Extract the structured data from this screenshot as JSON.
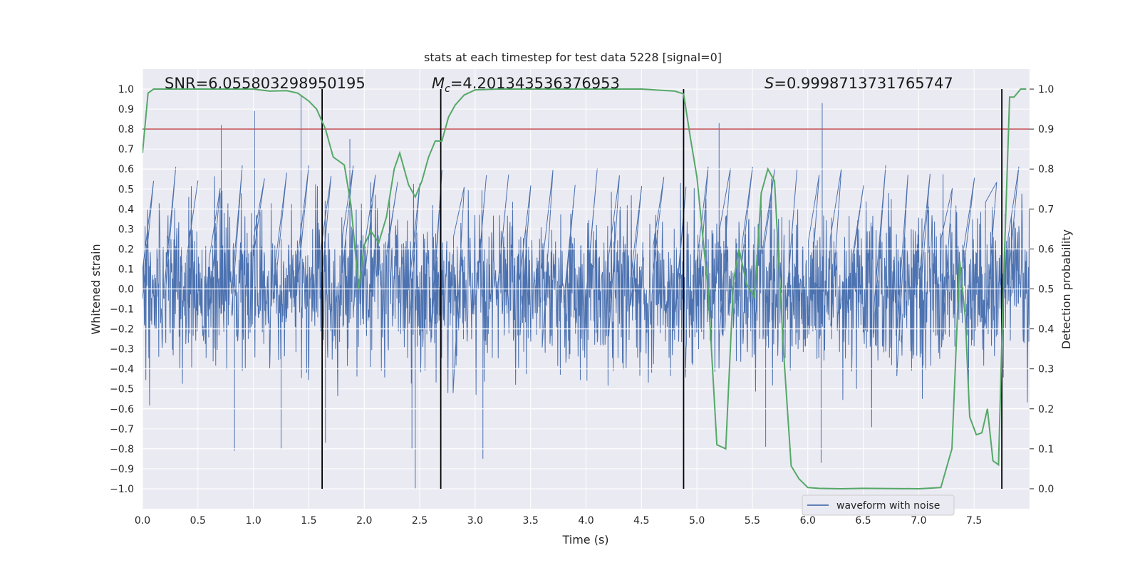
{
  "chart_data": {
    "type": "line",
    "title": "stats at each timestep for test data 5228 [signal=0]",
    "xlabel": "Time (s)",
    "ylabel_left": "Whitened strain",
    "ylabel_right": "Detection probability",
    "xlim": [
      0.0,
      8.0
    ],
    "ylim_left": [
      -1.1,
      1.1
    ],
    "ylim_right": [
      -0.05,
      1.05
    ],
    "x_ticks": [
      0.0,
      0.5,
      1.0,
      1.5,
      2.0,
      2.5,
      3.0,
      3.5,
      4.0,
      4.5,
      5.0,
      5.5,
      6.0,
      6.5,
      7.0,
      7.5
    ],
    "x_tick_labels": [
      "0.0",
      "0.5",
      "1.0",
      "1.5",
      "2.0",
      "2.5",
      "3.0",
      "3.5",
      "4.0",
      "4.5",
      "5.0",
      "5.5",
      "6.0",
      "6.5",
      "7.0",
      "7.5"
    ],
    "y_left_ticks": [
      -1.0,
      -0.9,
      -0.8,
      -0.7,
      -0.6,
      -0.5,
      -0.4,
      -0.3,
      -0.2,
      -0.1,
      0.0,
      0.1,
      0.2,
      0.3,
      0.4,
      0.5,
      0.6,
      0.7,
      0.8,
      0.9,
      1.0
    ],
    "y_left_tick_labels": [
      "−1.0",
      "−0.9",
      "−0.8",
      "−0.7",
      "−0.6",
      "−0.5",
      "−0.4",
      "−0.3",
      "−0.2",
      "−0.1",
      "0.0",
      "0.1",
      "0.2",
      "0.3",
      "0.4",
      "0.5",
      "0.6",
      "0.7",
      "0.8",
      "0.9",
      "1.0"
    ],
    "y_right_ticks": [
      0.0,
      0.1,
      0.2,
      0.3,
      0.4,
      0.5,
      0.6,
      0.7,
      0.8,
      0.9,
      1.0
    ],
    "y_right_tick_labels": [
      "0.0",
      "0.1",
      "0.2",
      "0.3",
      "0.4",
      "0.5",
      "0.6",
      "0.7",
      "0.8",
      "0.9",
      "1.0"
    ],
    "annotations": {
      "snr": "SNR=6.055803298950195",
      "mc_symbol": "M",
      "mc_sub": "c",
      "mc_value": "=4.201343536376953",
      "s_symbol": "S",
      "s_value": "=0.9998713731765747"
    },
    "threshold_probability": 0.9,
    "vertical_markers_s": [
      1.62,
      2.69,
      4.88,
      7.75
    ],
    "waveform": {
      "name": "waveform with noise",
      "duration_s": 8.0,
      "typical_range": [
        -0.45,
        0.45
      ],
      "peaks": [
        {
          "x": 0.71,
          "y": 0.82
        },
        {
          "x": 1.01,
          "y": 0.89
        },
        {
          "x": 1.43,
          "y": 0.97
        },
        {
          "x": 1.87,
          "y": 0.75
        },
        {
          "x": 5.2,
          "y": 0.83
        },
        {
          "x": 6.13,
          "y": 0.93
        },
        {
          "x": 0.83,
          "y": -0.81
        },
        {
          "x": 1.25,
          "y": -0.8
        },
        {
          "x": 2.43,
          "y": -0.8
        },
        {
          "x": 2.46,
          "y": -1.0
        },
        {
          "x": 3.07,
          "y": -0.85
        },
        {
          "x": 6.12,
          "y": -0.87
        },
        {
          "x": 1.65,
          "y": -0.77
        },
        {
          "x": 5.62,
          "y": -0.79
        }
      ]
    },
    "probability": {
      "color": "#55a868",
      "x": [
        0.0,
        0.05,
        0.1,
        0.2,
        0.3,
        0.5,
        0.8,
        1.0,
        1.15,
        1.3,
        1.4,
        1.5,
        1.57,
        1.65,
        1.72,
        1.82,
        1.88,
        1.95,
        2.0,
        2.06,
        2.13,
        2.2,
        2.27,
        2.32,
        2.4,
        2.46,
        2.52,
        2.58,
        2.64,
        2.7,
        2.76,
        2.82,
        2.9,
        3.0,
        3.2,
        3.5,
        4.0,
        4.5,
        4.8,
        4.88,
        4.94,
        5.0,
        5.1,
        5.18,
        5.26,
        5.33,
        5.38,
        5.45,
        5.52,
        5.58,
        5.64,
        5.7,
        5.78,
        5.85,
        5.92,
        6.0,
        6.1,
        6.3,
        6.5,
        7.0,
        7.2,
        7.3,
        7.37,
        7.42,
        7.46,
        7.52,
        7.57,
        7.62,
        7.67,
        7.72,
        7.76,
        7.82,
        7.86,
        7.92,
        7.97
      ],
      "y": [
        0.84,
        0.99,
        1.0,
        1.0,
        1.0,
        1.0,
        1.0,
        1.0,
        0.995,
        0.996,
        0.99,
        0.97,
        0.95,
        0.9,
        0.83,
        0.81,
        0.71,
        0.5,
        0.61,
        0.645,
        0.615,
        0.68,
        0.8,
        0.84,
        0.76,
        0.73,
        0.77,
        0.83,
        0.87,
        0.87,
        0.93,
        0.96,
        0.985,
        0.998,
        1.0,
        1.0,
        1.0,
        1.0,
        0.995,
        0.988,
        0.88,
        0.78,
        0.5,
        0.11,
        0.1,
        0.52,
        0.6,
        0.51,
        0.48,
        0.74,
        0.8,
        0.77,
        0.35,
        0.057,
        0.025,
        0.003,
        0.001,
        0.0,
        0.001,
        0.0,
        0.003,
        0.1,
        0.57,
        0.43,
        0.18,
        0.135,
        0.14,
        0.2,
        0.07,
        0.06,
        0.47,
        0.98,
        0.98,
        1.0,
        1.0
      ]
    },
    "legend": {
      "label": "waveform with noise",
      "position": "lower-right"
    },
    "colors": {
      "waveform": "#4c72b0",
      "probability": "#55a868",
      "threshold": "#c44e52",
      "markers": "#000000",
      "background": "#eaeaf2",
      "grid": "#ffffff"
    }
  }
}
